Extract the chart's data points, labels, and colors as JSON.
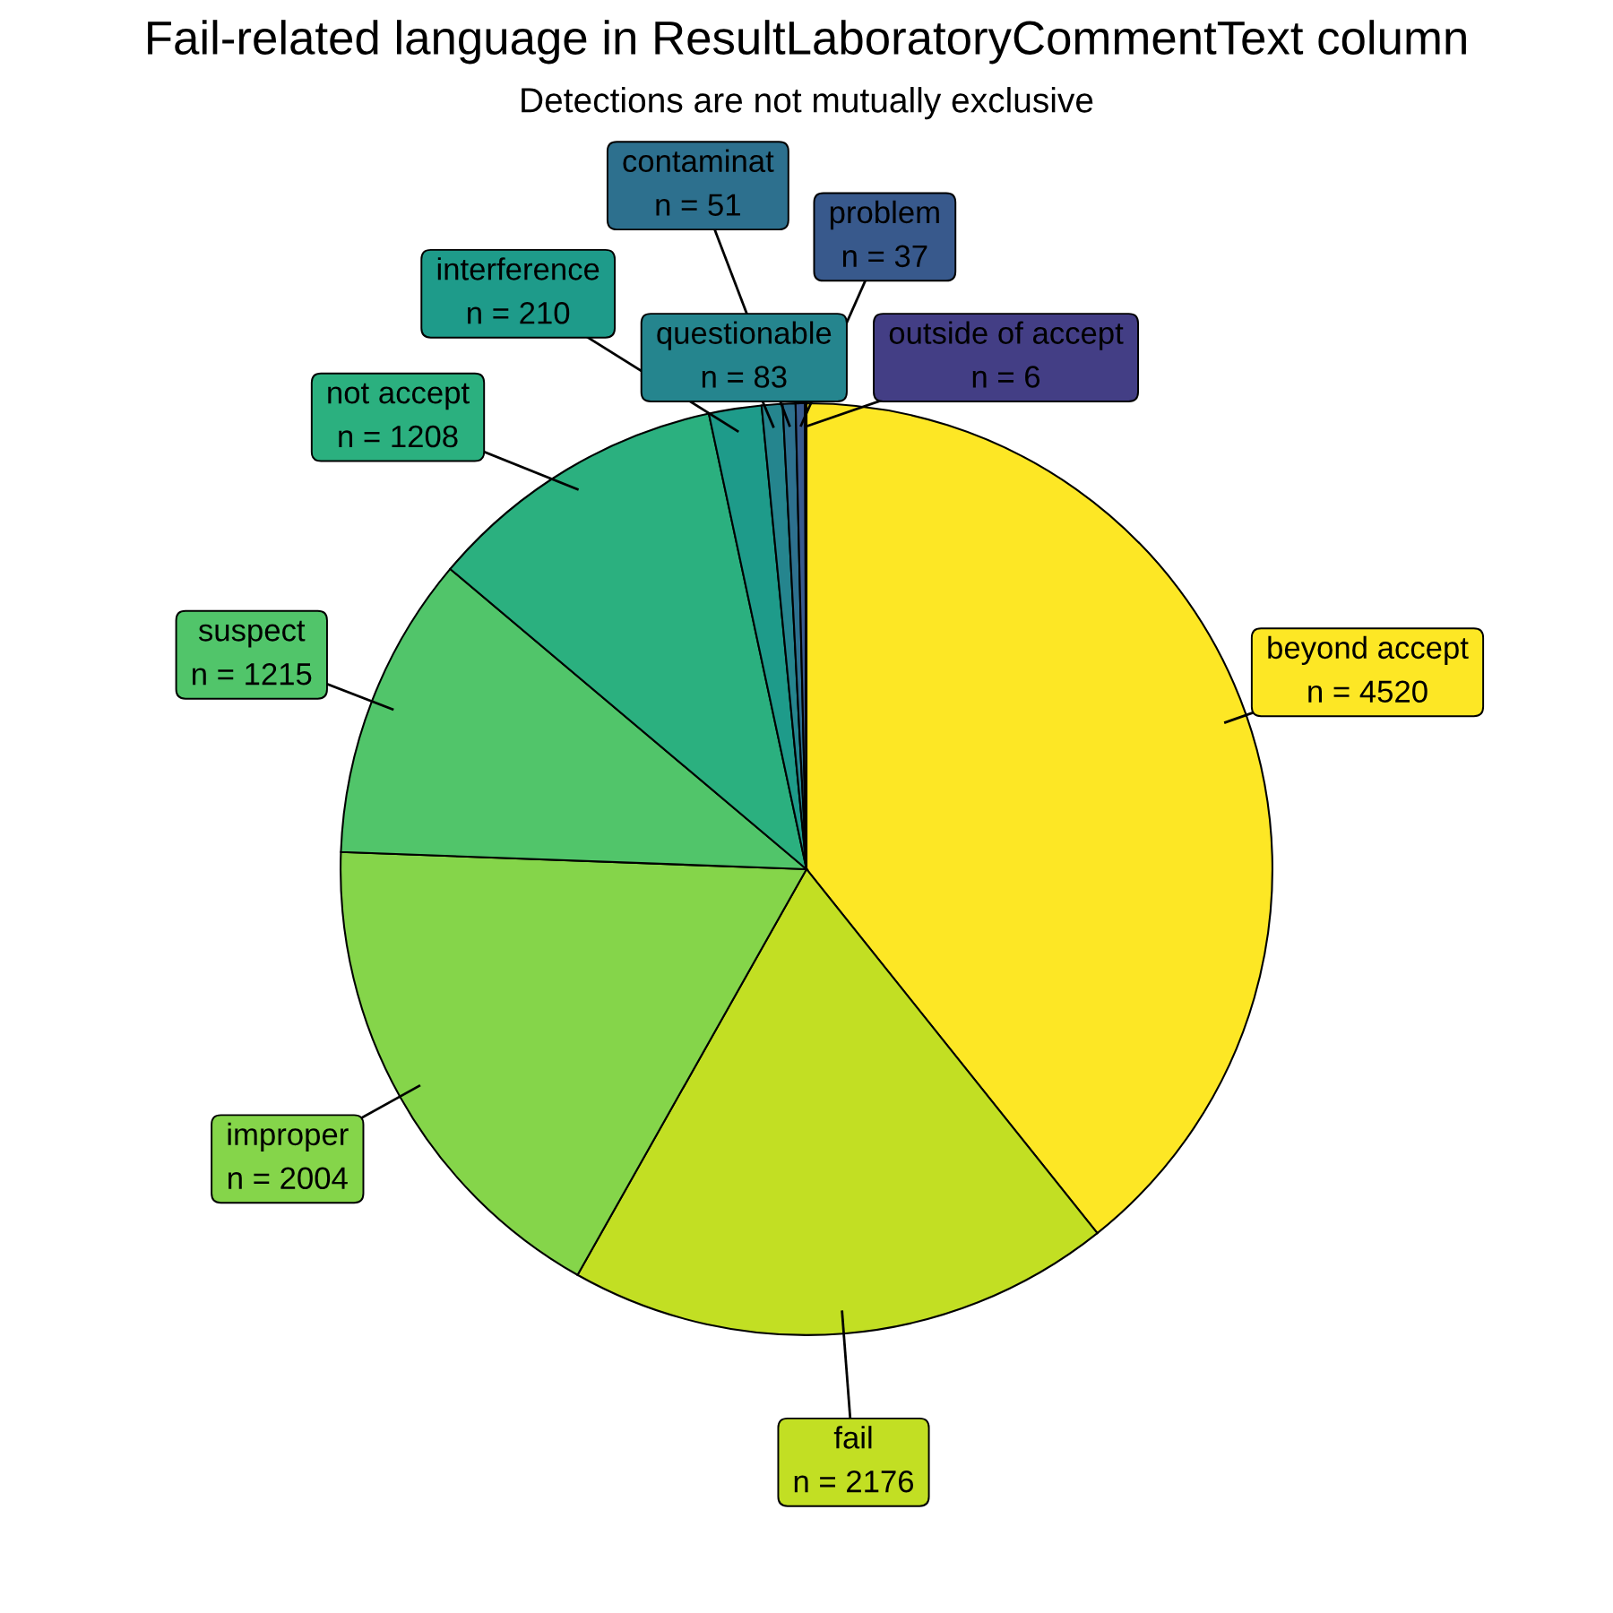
{
  "chart_data": {
    "type": "pie",
    "title": "Fail-related language in ResultLaboratoryCommentText column",
    "subtitle": "Detections are not mutually exclusive",
    "categories": [
      "beyond accept",
      "fail",
      "improper",
      "suspect",
      "not accept",
      "interference",
      "questionable",
      "contaminat",
      "problem",
      "outside of accept"
    ],
    "values": [
      4520,
      2176,
      2004,
      1215,
      1208,
      210,
      83,
      51,
      37,
      6
    ],
    "value_labels": [
      "n = 4520",
      "n = 2176",
      "n = 2004",
      "n = 1215",
      "n = 1208",
      "n = 210",
      "n = 83",
      "n = 51",
      "n = 37",
      "n = 6"
    ],
    "colors": [
      "#fde725",
      "#c2df23",
      "#85d54a",
      "#51c56a",
      "#2bb07f",
      "#1e9b8a",
      "#25858e",
      "#2d708e",
      "#38598c",
      "#433e85"
    ]
  }
}
